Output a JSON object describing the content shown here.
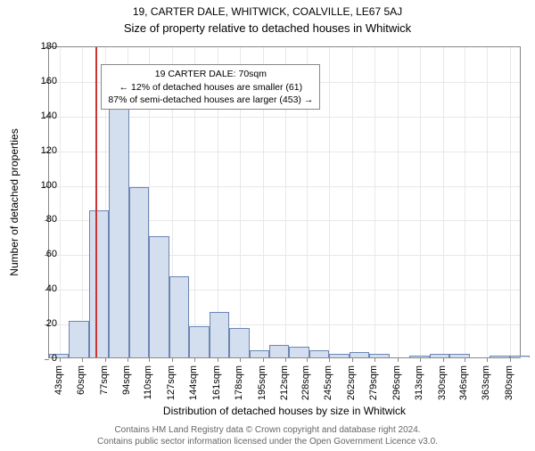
{
  "title_line1": "19, CARTER DALE, WHITWICK, COALVILLE, LE67 5AJ",
  "title_line2": "Size of property relative to detached houses in Whitwick",
  "ylabel": "Number of detached properties",
  "xlabel": "Distribution of detached houses by size in Whitwick",
  "chart": {
    "type": "histogram",
    "background_color": "#ffffff",
    "grid_color": "#e8e8e8",
    "border_color": "#888888",
    "bar_fill": "#d3deee",
    "bar_border": "#6d86b3",
    "ref_line_color": "#cc3333",
    "ref_line_x": 70,
    "x_range": [
      35,
      389
    ],
    "y_range": [
      0,
      180
    ],
    "y_ticks": [
      0,
      20,
      40,
      60,
      80,
      100,
      120,
      140,
      160,
      180
    ],
    "x_ticks": [
      43,
      60,
      77,
      94,
      110,
      127,
      144,
      161,
      178,
      195,
      212,
      228,
      245,
      262,
      279,
      296,
      313,
      330,
      346,
      363,
      380
    ],
    "x_tick_suffix": "sqm",
    "bar_width_units": 15,
    "bars": [
      {
        "x": 35,
        "y": 2
      },
      {
        "x": 50,
        "y": 21
      },
      {
        "x": 65,
        "y": 85
      },
      {
        "x": 80,
        "y": 147
      },
      {
        "x": 95,
        "y": 98
      },
      {
        "x": 110,
        "y": 70
      },
      {
        "x": 125,
        "y": 47
      },
      {
        "x": 140,
        "y": 18
      },
      {
        "x": 155,
        "y": 26
      },
      {
        "x": 170,
        "y": 17
      },
      {
        "x": 185,
        "y": 4
      },
      {
        "x": 200,
        "y": 7
      },
      {
        "x": 215,
        "y": 6
      },
      {
        "x": 230,
        "y": 4
      },
      {
        "x": 245,
        "y": 2
      },
      {
        "x": 260,
        "y": 3
      },
      {
        "x": 275,
        "y": 2
      },
      {
        "x": 290,
        "y": 0
      },
      {
        "x": 305,
        "y": 1
      },
      {
        "x": 320,
        "y": 2
      },
      {
        "x": 335,
        "y": 2
      },
      {
        "x": 350,
        "y": 0
      },
      {
        "x": 365,
        "y": 1
      },
      {
        "x": 380,
        "y": 1
      }
    ],
    "annotation": {
      "line1": "19 CARTER DALE: 70sqm",
      "line2": "← 12% of detached houses are smaller (61)",
      "line3": "87% of semi-detached houses are larger (453) →",
      "box_top_units": 170,
      "box_left_units": 70
    }
  },
  "footer_line1": "Contains HM Land Registry data © Crown copyright and database right 2024.",
  "footer_line2": "Contains public sector information licensed under the Open Government Licence v3.0."
}
